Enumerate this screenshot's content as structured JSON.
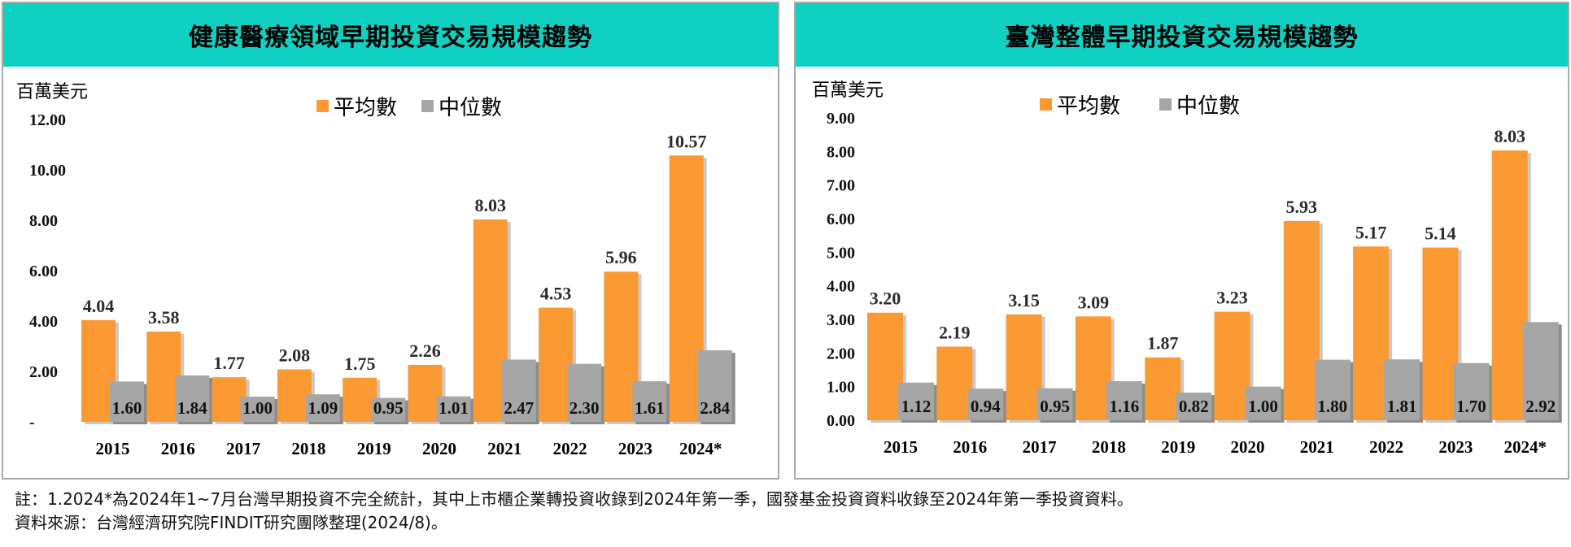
{
  "legend": {
    "mean": "平均數",
    "median": "中位數"
  },
  "colors": {
    "mean": "#fb9a33",
    "median": "#a6a6a6",
    "header": "#0fd1c2",
    "shadow": "#9a9a9a"
  },
  "footnotes": {
    "note": "註：1.2024*為2024年1~7月台灣早期投資不完全統計，其中上市櫃企業轉投資收錄到2024年第一季，國發基金投資資料收錄至2024年第一季投資資料。",
    "source": "資料來源：台灣經濟研究院FINDIT研究團隊整理(2024/8)。"
  },
  "chart_data": [
    {
      "type": "bar",
      "title": "健康醫療領域早期投資交易規模趨勢",
      "ylabel": "百萬美元",
      "ylim": [
        0,
        12
      ],
      "yticks": [
        "-",
        "2.00",
        "4.00",
        "6.00",
        "8.00",
        "10.00",
        "12.00"
      ],
      "grid": false,
      "legend_position": "top-center",
      "categories": [
        "2015",
        "2016",
        "2017",
        "2018",
        "2019",
        "2020",
        "2021",
        "2022",
        "2023",
        "2024*"
      ],
      "series": [
        {
          "name": "平均數",
          "values": [
            4.04,
            3.58,
            1.77,
            2.08,
            1.75,
            2.26,
            8.03,
            4.53,
            5.96,
            10.57
          ],
          "labels": [
            "4.04",
            "3.58",
            "1.77",
            "2.08",
            "1.75",
            "2.26",
            "8.03",
            "4.53",
            "5.96",
            "10.57"
          ]
        },
        {
          "name": "中位數",
          "values": [
            1.6,
            1.84,
            1.0,
            1.09,
            0.95,
            1.01,
            2.47,
            2.3,
            1.61,
            2.84
          ],
          "labels": [
            "1.60",
            "1.84",
            "1.00",
            "1.09",
            "0.95",
            "1.01",
            "2.47",
            "2.30",
            "1.61",
            "2.84"
          ]
        }
      ]
    },
    {
      "type": "bar",
      "title": "臺灣整體早期投資交易規模趨勢",
      "ylabel": "百萬美元",
      "ylim": [
        0,
        9
      ],
      "yticks": [
        "0.00",
        "1.00",
        "2.00",
        "3.00",
        "4.00",
        "5.00",
        "6.00",
        "7.00",
        "8.00",
        "9.00"
      ],
      "grid": false,
      "legend_position": "top-center",
      "categories": [
        "2015",
        "2016",
        "2017",
        "2018",
        "2019",
        "2020",
        "2021",
        "2022",
        "2023",
        "2024*"
      ],
      "series": [
        {
          "name": "平均數",
          "values": [
            3.2,
            2.19,
            3.15,
            3.09,
            1.87,
            3.23,
            5.93,
            5.17,
            5.14,
            8.03
          ],
          "labels": [
            "3.20",
            "2.19",
            "3.15",
            "3.09",
            "1.87",
            "3.23",
            "5.93",
            "5.17",
            "5.14",
            "8.03"
          ]
        },
        {
          "name": "中位數",
          "values": [
            1.12,
            0.94,
            0.95,
            1.16,
            0.82,
            1.0,
            1.8,
            1.81,
            1.7,
            2.92
          ],
          "labels": [
            "1.12",
            "0.94",
            "0.95",
            "1.16",
            "0.82",
            "1.00",
            "1.80",
            "1.81",
            "1.70",
            "2.92"
          ]
        }
      ]
    }
  ]
}
